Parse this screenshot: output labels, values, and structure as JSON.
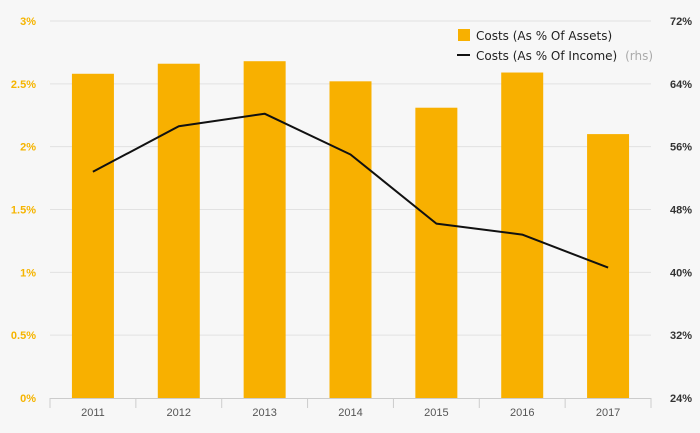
{
  "chart_data": {
    "type": "bar",
    "categories": [
      "2011",
      "2012",
      "2013",
      "2014",
      "2015",
      "2016",
      "2017"
    ],
    "series": [
      {
        "name": "Costs (As % Of Assets)",
        "type": "bar",
        "axis": "left",
        "color": "#f8b000",
        "values": [
          2.58,
          2.66,
          2.68,
          2.52,
          2.31,
          2.59,
          2.1
        ]
      },
      {
        "name": "Costs (As % Of Income)",
        "axis_note": "(rhs)",
        "type": "line",
        "axis": "right",
        "color": "#111111",
        "values": [
          52.8,
          58.6,
          60.2,
          55.0,
          46.2,
          44.8,
          40.6
        ]
      }
    ],
    "y_left": {
      "ylim": [
        0,
        3
      ],
      "ticks": [
        0,
        0.5,
        1,
        1.5,
        2,
        2.5,
        3
      ],
      "tick_labels": [
        "0%",
        "0.5%",
        "1%",
        "1.5%",
        "2%",
        "2.5%",
        "3%"
      ]
    },
    "y_right": {
      "ylim": [
        24,
        72
      ],
      "ticks": [
        24,
        32,
        40,
        48,
        56,
        64,
        72
      ],
      "tick_labels": [
        "24%",
        "32%",
        "40%",
        "48%",
        "56%",
        "64%",
        "72%"
      ]
    },
    "grid": true,
    "legend_position": "top-right",
    "colors": {
      "left_axis": "#f5b400",
      "grid": "#e2e2e2"
    }
  }
}
